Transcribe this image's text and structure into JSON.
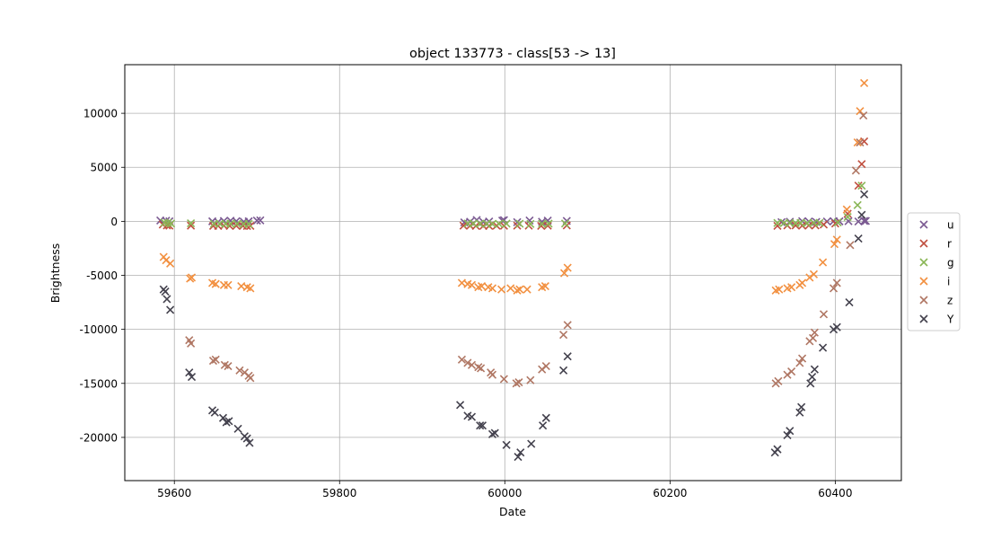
{
  "chart_data": {
    "type": "scatter",
    "title": "object 133773 - class[53 -> 13]",
    "xlabel": "Date",
    "ylabel": "Brightness",
    "xlim": [
      59540,
      60480
    ],
    "ylim": [
      -24000,
      14500
    ],
    "xticks": [
      59600,
      59800,
      60000,
      60200,
      60400
    ],
    "yticks": [
      -20000,
      -15000,
      -10000,
      -5000,
      0,
      5000,
      10000
    ],
    "grid": true,
    "marker": "x",
    "legend_position": "right, outside plot",
    "series": [
      {
        "name": "u",
        "color": "#7b5a92",
        "x": [
          59583,
          59590,
          59594,
          59646,
          59653,
          59660,
          59668,
          59675,
          59684,
          59690,
          59700,
          59704,
          59951,
          59958,
          59966,
          59974,
          59981,
          59997,
          59999,
          60015,
          60030,
          60045,
          60052,
          60075,
          60335,
          60345,
          60360,
          60368,
          60377,
          60390,
          60398,
          60405,
          60416,
          60428,
          60435,
          60437
        ],
        "y": [
          80,
          60,
          0,
          0,
          -60,
          40,
          60,
          20,
          -40,
          0,
          70,
          90,
          -100,
          -40,
          120,
          -60,
          -20,
          70,
          110,
          -80,
          80,
          -40,
          70,
          40,
          -80,
          -40,
          20,
          -20,
          -60,
          -20,
          20,
          0,
          20,
          -20,
          40,
          40
        ]
      },
      {
        "name": "r",
        "color": "#c04f3f",
        "x": [
          59586,
          59591,
          59594,
          59620,
          59647,
          59653,
          59660,
          59667,
          59675,
          59683,
          59688,
          59692,
          59950,
          59958,
          59965,
          59974,
          59981,
          59990,
          59999,
          60015,
          60029,
          60044,
          60052,
          60075,
          60330,
          60342,
          60352,
          60360,
          60368,
          60376,
          60386,
          60400,
          60415,
          60428,
          60432,
          60435
        ],
        "y": [
          -300,
          -380,
          -400,
          -400,
          -420,
          -420,
          -400,
          -420,
          -410,
          -420,
          -430,
          -420,
          -400,
          -400,
          -420,
          -420,
          -420,
          -400,
          -410,
          -400,
          -400,
          -420,
          -400,
          -380,
          -420,
          -380,
          -380,
          -400,
          -380,
          -380,
          -300,
          -200,
          700,
          3300,
          5300,
          7400
        ]
      },
      {
        "name": "g",
        "color": "#8ab656",
        "x": [
          59588,
          59592,
          59596,
          59620,
          59648,
          59655,
          59662,
          59668,
          59676,
          59684,
          59690,
          59955,
          59962,
          59970,
          59978,
          59985,
          59993,
          60002,
          60018,
          60031,
          60045,
          60053,
          60073,
          60330,
          60338,
          60345,
          60352,
          60358,
          60366,
          60374,
          60381,
          60403,
          60415,
          60427,
          60432
        ],
        "y": [
          -120,
          -150,
          -200,
          -180,
          -220,
          -220,
          -230,
          -210,
          -220,
          -240,
          -240,
          -200,
          -210,
          -230,
          -220,
          -240,
          -230,
          -210,
          -220,
          -240,
          -230,
          -210,
          -200,
          -150,
          -150,
          -160,
          -160,
          -150,
          -170,
          -140,
          -150,
          -100,
          400,
          1500,
          3300
        ]
      },
      {
        "name": "i",
        "color": "#f29040",
        "x": [
          59587,
          59590,
          59595,
          59619,
          59621,
          59646,
          59650,
          59660,
          59665,
          59681,
          59688,
          59692,
          59948,
          59955,
          59960,
          59968,
          59972,
          59980,
          59985,
          59996,
          60007,
          60015,
          60018,
          60027,
          60045,
          60049,
          60072,
          60076,
          60328,
          60332,
          60342,
          60347,
          60357,
          60360,
          60369,
          60374,
          60385,
          60399,
          60402,
          60414,
          60427,
          60430,
          60435
        ],
        "y": [
          -3300,
          -3600,
          -3900,
          -5300,
          -5200,
          -5700,
          -5800,
          -5900,
          -5900,
          -6000,
          -6100,
          -6200,
          -5700,
          -5800,
          -5900,
          -6100,
          -6000,
          -6100,
          -6200,
          -6300,
          -6200,
          -6400,
          -6300,
          -6300,
          -6100,
          -6000,
          -4800,
          -4300,
          -6400,
          -6300,
          -6200,
          -6100,
          -5900,
          -5700,
          -5200,
          -4900,
          -3800,
          -2100,
          -1700,
          1100,
          7300,
          10200,
          12800
        ]
      },
      {
        "name": "z",
        "color": "#b07764",
        "x": [
          59618,
          59620,
          59647,
          59650,
          59661,
          59665,
          59679,
          59685,
          59690,
          59692,
          59948,
          59955,
          59960,
          59968,
          59971,
          59983,
          59985,
          59999,
          60014,
          60017,
          60031,
          60045,
          60050,
          60071,
          60076,
          60328,
          60331,
          60342,
          60347,
          60357,
          60360,
          60369,
          60373,
          60375,
          60386,
          60398,
          60402,
          60418,
          60425,
          60430,
          60434
        ],
        "y": [
          -11000,
          -11300,
          -12900,
          -12800,
          -13300,
          -13400,
          -13800,
          -14000,
          -14300,
          -14500,
          -12800,
          -13100,
          -13300,
          -13500,
          -13600,
          -14000,
          -14200,
          -14600,
          -15000,
          -14900,
          -14700,
          -13700,
          -13400,
          -10500,
          -9600,
          -15000,
          -14800,
          -14200,
          -13900,
          -13100,
          -12700,
          -11100,
          -10800,
          -10300,
          -8600,
          -6200,
          -5700,
          -2200,
          4700,
          7300,
          9800
        ]
      },
      {
        "name": "Y",
        "color": "#44424e",
        "x": [
          59587,
          59589,
          59591,
          59595,
          59618,
          59621,
          59646,
          59649,
          59659,
          59663,
          59666,
          59677,
          59685,
          59688,
          59691,
          59946,
          59955,
          59960,
          59970,
          59973,
          59985,
          59988,
          60002,
          60016,
          60019,
          60032,
          60046,
          60050,
          60071,
          60076,
          60327,
          60330,
          60342,
          60345,
          60357,
          60359,
          60370,
          60372,
          60375,
          60385,
          60398,
          60402,
          60417,
          60428,
          60432,
          60435
        ],
        "y": [
          -6300,
          -6500,
          -7200,
          -8200,
          -14000,
          -14400,
          -17500,
          -17700,
          -18200,
          -18600,
          -18500,
          -19200,
          -19900,
          -20100,
          -20500,
          -17000,
          -18000,
          -18100,
          -18900,
          -18900,
          -19700,
          -19600,
          -20700,
          -21800,
          -21400,
          -20600,
          -18900,
          -18200,
          -13800,
          -12500,
          -21400,
          -21100,
          -19800,
          -19400,
          -17700,
          -17200,
          -15000,
          -14400,
          -13700,
          -11700,
          -10000,
          -9800,
          -7500,
          -1600,
          600,
          2500
        ]
      }
    ]
  }
}
